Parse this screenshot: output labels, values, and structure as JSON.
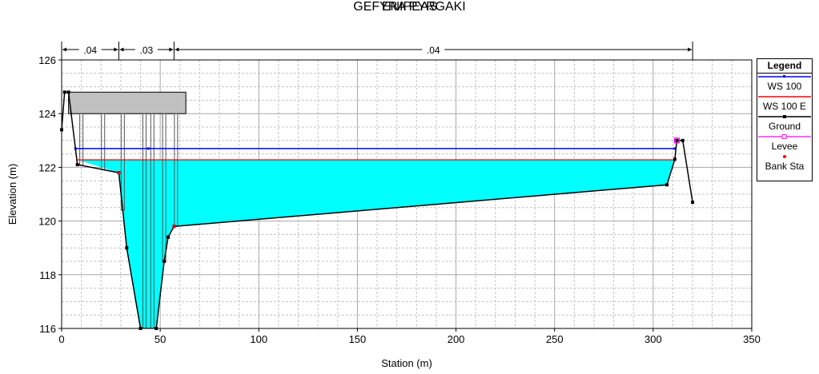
{
  "chart_data": {
    "type": "area",
    "title": "ENIPEAS",
    "subtitle": "GEFYRA PYRGAKI",
    "xlabel": "Station (m)",
    "ylabel": "Elevation (m)",
    "xlim": [
      0,
      350
    ],
    "ylim": [
      116,
      126
    ],
    "x_ticks": [
      0,
      50,
      100,
      150,
      200,
      250,
      300,
      350
    ],
    "y_ticks": [
      116,
      118,
      120,
      122,
      124,
      126
    ],
    "grid": true,
    "legend_position": "right",
    "legend_title": "Legend",
    "manning_n": [
      {
        "label": ".04",
        "from": 0,
        "to": 29
      },
      {
        "label": ".03",
        "from": 29,
        "to": 57
      },
      {
        "label": ".04",
        "from": 57,
        "to": 320
      }
    ],
    "ground": {
      "x": [
        0,
        1.5,
        3.5,
        8,
        29,
        33,
        40,
        48,
        52,
        54,
        57,
        307,
        311,
        312,
        315,
        320
      ],
      "y": [
        123.4,
        124.8,
        124.8,
        122.1,
        121.8,
        119.0,
        116.0,
        116.0,
        118.5,
        119.4,
        119.8,
        121.35,
        122.3,
        123.0,
        123.0,
        120.7
      ]
    },
    "deck": {
      "x_start": 3.5,
      "x_end": 63,
      "top": 124.8,
      "bottom": 124.0
    },
    "piers_x": [
      10,
      21,
      31,
      42,
      46,
      52,
      58
    ],
    "series": [
      {
        "name": "WS 100",
        "color": "#0000ff",
        "elevation": 122.7,
        "x_start": 7,
        "x_end": 311
      },
      {
        "name": "WS 100 E",
        "color": "#ff0000",
        "elevation": 122.28,
        "x_start": 8,
        "x_end": 311
      },
      {
        "name": "Ground",
        "color": "#000000"
      },
      {
        "name": "Levee",
        "color": "#ff00ff",
        "x": [
          312
        ]
      },
      {
        "name": "Bank Sta",
        "color": "#ff0000",
        "x": [
          29,
          57
        ]
      }
    ],
    "water_fill_color": "#00ffff"
  }
}
